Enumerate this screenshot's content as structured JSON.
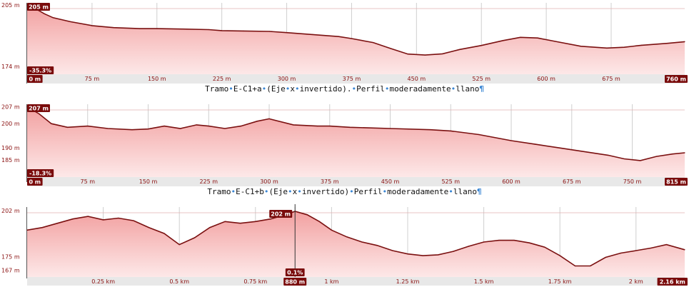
{
  "charts": [
    {
      "caption": "Tramo•E-C1+a•(Eje•x•invertido).•Perfil•moderadamente•llano¶",
      "chart_data": {
        "type": "area",
        "title": "",
        "xlabel": "",
        "ylabel": "",
        "x_unit": "m",
        "xlim": [
          0,
          760
        ],
        "ylim": [
          170,
          206
        ],
        "x_ticks": [
          "0 m",
          "75 m",
          "150 m",
          "225 m",
          "300 m",
          "375 m",
          "450 m",
          "525 m",
          "600 m",
          "675 m",
          "760 m"
        ],
        "x_tick_values": [
          0,
          75,
          150,
          225,
          300,
          375,
          450,
          525,
          600,
          675,
          760
        ],
        "y_ticks": [
          "205 m",
          "174 m"
        ],
        "y_tick_values": [
          205,
          174
        ],
        "badges": {
          "max": "205 m",
          "slope": "-35.3%",
          "start": "0 m",
          "end": "760 m"
        },
        "x": [
          0,
          10,
          20,
          30,
          50,
          75,
          100,
          130,
          150,
          180,
          210,
          225,
          250,
          280,
          300,
          330,
          360,
          375,
          400,
          420,
          440,
          460,
          480,
          500,
          525,
          550,
          570,
          590,
          610,
          640,
          670,
          690,
          710,
          740,
          760
        ],
        "values": [
          205,
          203,
          200.5,
          198.5,
          196.5,
          194.5,
          193.5,
          193,
          193,
          192.8,
          192.5,
          192,
          191.8,
          191.6,
          191,
          190,
          189,
          188,
          186,
          183,
          180.2,
          179.7,
          180.3,
          182.5,
          184.5,
          187,
          188.6,
          188.3,
          186.6,
          184.1,
          183.2,
          183.6,
          184.6,
          185.6,
          186.4
        ]
      }
    },
    {
      "caption": "Tramo•E-C1+b•(Eje•x•invertido)•Perfil•moderadamente•llano¶",
      "chart_data": {
        "type": "area",
        "title": "",
        "xlabel": "",
        "ylabel": "",
        "x_unit": "m",
        "xlim": [
          0,
          815
        ],
        "ylim": [
          178,
          208
        ],
        "x_ticks": [
          "0 m",
          "75 m",
          "150 m",
          "225 m",
          "300 m",
          "375 m",
          "450 m",
          "525 m",
          "600 m",
          "675 m",
          "750 m",
          "815 m"
        ],
        "x_tick_values": [
          0,
          75,
          150,
          225,
          300,
          375,
          450,
          525,
          600,
          675,
          750,
          815
        ],
        "y_ticks": [
          "207 m",
          "200 m",
          "190 m",
          "185 m"
        ],
        "y_tick_values": [
          207,
          200,
          190,
          185
        ],
        "badges": {
          "max": "207 m",
          "slope": "-18.3%",
          "start": "0 m",
          "end": "815 m"
        },
        "x": [
          0,
          15,
          30,
          50,
          75,
          100,
          130,
          150,
          170,
          190,
          210,
          225,
          245,
          265,
          285,
          300,
          330,
          360,
          375,
          400,
          450,
          500,
          525,
          560,
          600,
          630,
          660,
          690,
          720,
          740,
          760,
          780,
          800,
          815
        ],
        "values": [
          207,
          204,
          200,
          198.5,
          199,
          198,
          197.5,
          197.8,
          199,
          198,
          199.5,
          199,
          198,
          199,
          201,
          202,
          199.5,
          199,
          199,
          198.5,
          198,
          197.5,
          197,
          195.5,
          193,
          191.5,
          190,
          188.5,
          187,
          185.5,
          184.8,
          186.5,
          187.5,
          188
        ]
      }
    },
    {
      "caption": "",
      "chart_data": {
        "type": "area",
        "title": "",
        "xlabel": "",
        "ylabel": "",
        "x_unit": "km",
        "xlim": [
          0,
          2.16
        ],
        "ylim": [
          163,
          204
        ],
        "x_ticks": [
          "0.25 km",
          "0.5 km",
          "0.75 km",
          "880 m",
          "1 km",
          "1.25 km",
          "1.5 km",
          "1.75 km",
          "2 km",
          "2.16 km"
        ],
        "x_tick_values": [
          0.25,
          0.5,
          0.75,
          0.88,
          1,
          1.25,
          1.5,
          1.75,
          2,
          2.16
        ],
        "y_ticks": [
          "202 m",
          "175 m",
          "167 m"
        ],
        "y_tick_values": [
          202,
          175,
          167
        ],
        "badges": {
          "cursor_value": "202 m",
          "cursor_slope": "0.1%",
          "cursor_position": "880 m",
          "end": "2.16 km"
        },
        "cursor_x": 0.88,
        "x": [
          0,
          0.05,
          0.1,
          0.15,
          0.2,
          0.25,
          0.3,
          0.35,
          0.4,
          0.45,
          0.5,
          0.55,
          0.6,
          0.65,
          0.7,
          0.75,
          0.8,
          0.85,
          0.88,
          0.92,
          0.96,
          1.0,
          1.05,
          1.1,
          1.15,
          1.2,
          1.25,
          1.3,
          1.35,
          1.4,
          1.45,
          1.5,
          1.55,
          1.6,
          1.65,
          1.7,
          1.75,
          1.8,
          1.85,
          1.9,
          1.95,
          2.0,
          2.05,
          2.1,
          2.16
        ],
        "values": [
          190.5,
          192,
          194.5,
          197,
          198.5,
          196.5,
          197.5,
          196,
          192,
          188.5,
          182,
          186,
          192,
          195.5,
          194.5,
          195.5,
          197,
          199.5,
          201.5,
          199.5,
          195.5,
          190.5,
          186.5,
          183.5,
          181.5,
          178.5,
          176.5,
          175.5,
          176,
          178,
          181,
          183.5,
          184.5,
          184.5,
          183,
          180.5,
          175.5,
          169.5,
          169.5,
          174.5,
          177,
          178.5,
          180,
          182,
          179
        ]
      }
    }
  ]
}
